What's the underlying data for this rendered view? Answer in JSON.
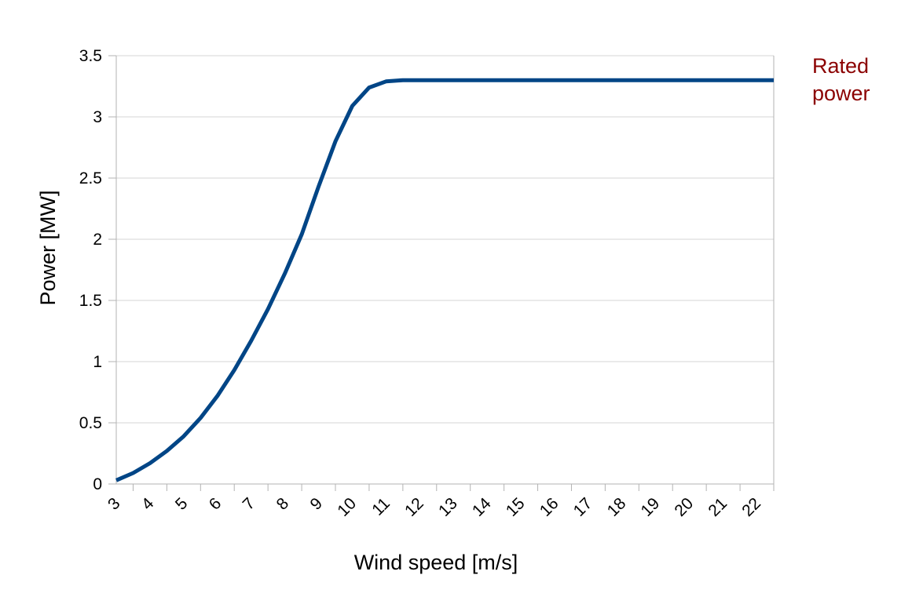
{
  "chart_data": {
    "type": "line",
    "xlabel": "Wind speed  [m/s]",
    "ylabel": "Power [MW]",
    "x_categories": [
      "3",
      "4",
      "5",
      "6",
      "7",
      "8",
      "9",
      "10",
      "11",
      "12",
      "13",
      "14",
      "15",
      "16",
      "17",
      "18",
      "19",
      "20",
      "21",
      "22"
    ],
    "xlim": [
      3,
      22.5
    ],
    "ylim": [
      0,
      3.5
    ],
    "y_ticks": [
      "0",
      "0.5",
      "1",
      "1.5",
      "2",
      "2.5",
      "3",
      "3.5"
    ],
    "grid": true,
    "series": [
      {
        "color": "#004586",
        "x": [
          3,
          3.5,
          4,
          4.5,
          5,
          5.5,
          6,
          6.5,
          7,
          7.5,
          8,
          8.5,
          9,
          9.5,
          10,
          10.5,
          11,
          11.5,
          12,
          13,
          14,
          15,
          16,
          17,
          18,
          19,
          20,
          21,
          22,
          22.5
        ],
        "y": [
          0.03,
          0.09,
          0.17,
          0.27,
          0.39,
          0.54,
          0.72,
          0.93,
          1.17,
          1.43,
          1.72,
          2.04,
          2.43,
          2.8,
          3.09,
          3.24,
          3.29,
          3.3,
          3.3,
          3.3,
          3.3,
          3.3,
          3.3,
          3.3,
          3.3,
          3.3,
          3.3,
          3.3,
          3.3,
          3.3
        ]
      }
    ],
    "annotations": [
      {
        "lines": [
          "Rated",
          "power"
        ],
        "color": "#8b0000"
      }
    ]
  }
}
